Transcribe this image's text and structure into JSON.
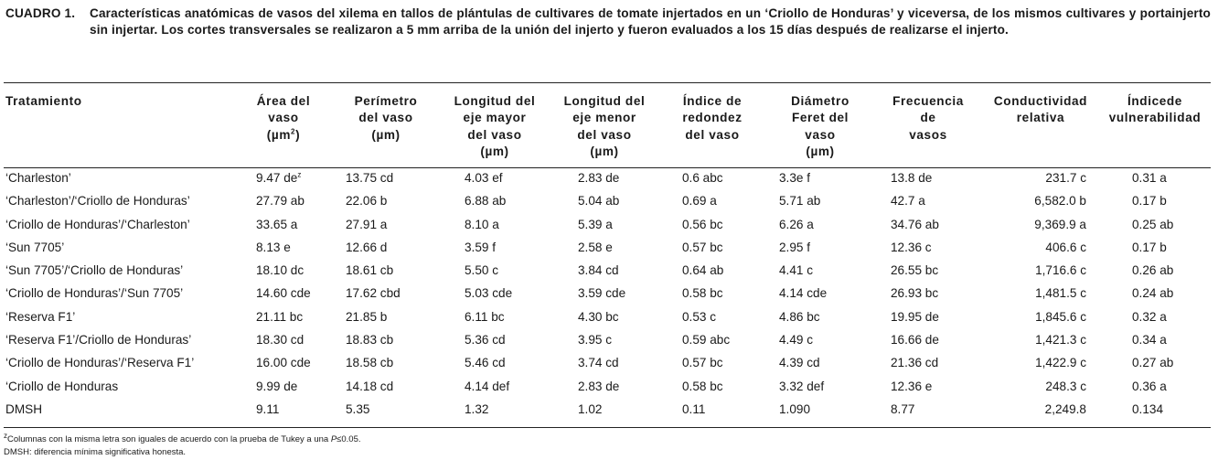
{
  "caption": {
    "label": "CUADRO 1.",
    "text": "Características anatómicas de vasos del xilema en tallos de plántulas de cultivares de tomate injertados en un ‘Criollo de Honduras’ y viceversa, de los mismos cultivares y portainjerto sin injertar. Los cortes transversales se realizaron a 5 mm arriba de la unión del injerto y fueron evaluados a los 15 días después de realizarse el injerto."
  },
  "table": {
    "headers": [
      {
        "lines": [
          "Tratamiento"
        ]
      },
      {
        "lines": [
          "Área del",
          "vaso"
        ],
        "unit_pre": "(µm",
        "unit_sup": "2",
        "unit_post": ")"
      },
      {
        "lines": [
          "Perímetro",
          "del vaso",
          "(µm)"
        ]
      },
      {
        "lines": [
          "Longitud del",
          "eje mayor",
          "del vaso",
          "(µm)"
        ]
      },
      {
        "lines": [
          "Longitud del",
          "eje menor",
          "del vaso",
          "(µm)"
        ]
      },
      {
        "lines": [
          "Índice de",
          "redondez",
          "del vaso"
        ]
      },
      {
        "lines": [
          "Diámetro",
          "Feret del",
          "vaso",
          "(µm)"
        ]
      },
      {
        "lines": [
          "Frecuencia",
          "de",
          "vasos"
        ]
      },
      {
        "lines": [
          "Conductividad",
          "relativa"
        ]
      },
      {
        "lines": [
          "Índicede",
          "vulnerabilidad"
        ]
      }
    ],
    "rows": [
      {
        "tratamiento": "‘Charleston’",
        "area": "9.47 de",
        "area_sup": "z",
        "perimetro": "13.75 cd",
        "long_mayor": "4.03 ef",
        "long_menor": "2.83 de",
        "redondez": "0.6 abc",
        "feret": "3.3e f",
        "frecuencia": "13.8 de",
        "conductividad": "231.7 c",
        "vulnerabilidad": "0.31 a"
      },
      {
        "tratamiento": "‘Charleston’/‘Criollo de Honduras’",
        "area": "27.79 ab",
        "perimetro": "22.06 b",
        "long_mayor": "6.88 ab",
        "long_menor": "5.04 ab",
        "redondez": "0.69 a",
        "feret": "5.71 ab",
        "frecuencia": "42.7 a",
        "conductividad": "6,582.0 b",
        "vulnerabilidad": "0.17 b"
      },
      {
        "tratamiento": "‘Criollo de Honduras’/‘Charleston’",
        "area": "33.65 a",
        "perimetro": "27.91 a",
        "long_mayor": "8.10 a",
        "long_menor": "5.39 a",
        "redondez": "0.56 bc",
        "feret": "6.26 a",
        "frecuencia": "34.76 ab",
        "conductividad": "9,369.9 a",
        "vulnerabilidad": "0.25 ab"
      },
      {
        "tratamiento": "‘Sun 7705’",
        "area": "8.13 e",
        "perimetro": "12.66 d",
        "long_mayor": "3.59 f",
        "long_menor": "2.58 e",
        "redondez": "0.57 bc",
        "feret": "2.95 f",
        "frecuencia": "12.36 c",
        "conductividad": "406.6 c",
        "vulnerabilidad": "0.17 b"
      },
      {
        "tratamiento": "‘Sun 7705’/‘Criollo de Honduras’",
        "area": "18.10 dc",
        "perimetro": "18.61 cb",
        "long_mayor": "5.50 c",
        "long_menor": "3.84 cd",
        "redondez": "0.64 ab",
        "feret": "4.41 c",
        "frecuencia": "26.55 bc",
        "conductividad": "1,716.6 c",
        "vulnerabilidad": "0.26 ab"
      },
      {
        "tratamiento": "‘Criollo de Honduras’/‘Sun 7705’",
        "area": "14.60 cde",
        "perimetro": "17.62 cbd",
        "long_mayor": "5.03 cde",
        "long_menor": "3.59 cde",
        "redondez": "0.58 bc",
        "feret": "4.14 cde",
        "frecuencia": "26.93 bc",
        "conductividad": "1,481.5 c",
        "vulnerabilidad": "0.24 ab"
      },
      {
        "tratamiento": "‘Reserva F1’",
        "area": "21.11 bc",
        "perimetro": "21.85 b",
        "long_mayor": "6.11 bc",
        "long_menor": "4.30 bc",
        "redondez": "0.53 c",
        "feret": "4.86 bc",
        "frecuencia": "19.95 de",
        "conductividad": "1,845.6 c",
        "vulnerabilidad": "0.32 a"
      },
      {
        "tratamiento": "‘Reserva F1’/Criollo de Honduras’",
        "area": "18.30 cd",
        "perimetro": "18.83 cb",
        "long_mayor": "5.36 cd",
        "long_menor": "3.95 c",
        "redondez": "0.59 abc",
        "feret": "4.49 c",
        "frecuencia": "16.66 de",
        "conductividad": "1,421.3 c",
        "vulnerabilidad": "0.34 a"
      },
      {
        "tratamiento": "‘Criollo de Honduras’/‘Reserva F1’",
        "area": "16.00 cde",
        "perimetro": "18.58 cb",
        "long_mayor": "5.46 cd",
        "long_menor": "3.74 cd",
        "redondez": "0.57 bc",
        "feret": "4.39 cd",
        "frecuencia": "21.36 cd",
        "conductividad": "1,422.9 c",
        "vulnerabilidad": "0.27 ab"
      },
      {
        "tratamiento": "‘Criollo de Honduras",
        "area": "9.99 de",
        "perimetro": "14.18 cd",
        "long_mayor": "4.14 def",
        "long_menor": "2.83 de",
        "redondez": "0.58 bc",
        "feret": "3.32 def",
        "frecuencia": "12.36 e",
        "conductividad": "248.3 c",
        "vulnerabilidad": "0.36 a"
      },
      {
        "tratamiento": "DMSH",
        "area": "9.11",
        "perimetro": "5.35",
        "long_mayor": "1.32",
        "long_menor": "1.02",
        "redondez": "0.11",
        "feret": "1.090",
        "frecuencia": "8.77",
        "conductividad": "2,249.8",
        "vulnerabilidad": "0.134"
      }
    ]
  },
  "footnotes": {
    "note1_sup": "z",
    "note1_pre": "Columnas con la misma letra son iguales de acuerdo con la prueba de Tukey a una ",
    "note1_p": "P",
    "note1_post": "≤0.05.",
    "note2": "DMSH: diferencia mínima significativa honesta."
  }
}
